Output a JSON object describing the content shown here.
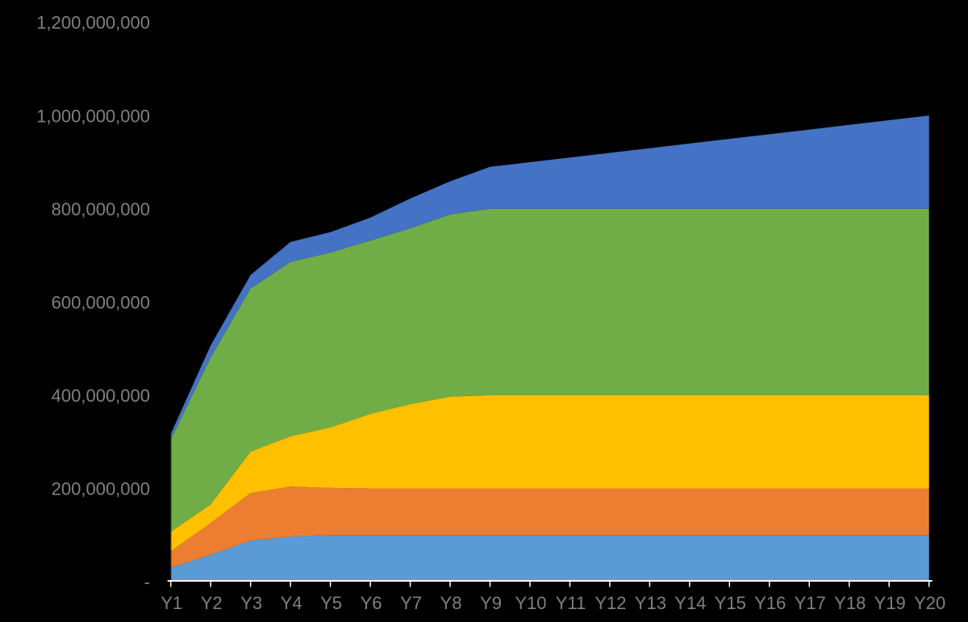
{
  "chart_data": {
    "type": "area",
    "stacked": true,
    "title": "",
    "xlabel": "",
    "ylabel": "",
    "grid": false,
    "legend": false,
    "background_color": "#000000",
    "label_color": "#808080",
    "axis_color": "#FFFFFF",
    "ylim": [
      0,
      1200000000
    ],
    "categories": [
      "Y1",
      "Y2",
      "Y3",
      "Y4",
      "Y5",
      "Y6",
      "Y7",
      "Y8",
      "Y9",
      "Y10",
      "Y11",
      "Y12",
      "Y13",
      "Y14",
      "Y15",
      "Y16",
      "Y17",
      "Y18",
      "Y19",
      "Y20"
    ],
    "y_ticks": [
      {
        "value": 0,
        "label": "-"
      },
      {
        "value": 200000000,
        "label": "200,000,000"
      },
      {
        "value": 400000000,
        "label": "400,000,000"
      },
      {
        "value": 600000000,
        "label": "600,000,000"
      },
      {
        "value": 800000000,
        "label": "800,000,000"
      },
      {
        "value": 1000000000,
        "label": "1,000,000,000"
      },
      {
        "value": 1200000000,
        "label": "1,200,000,000"
      }
    ],
    "series": [
      {
        "name": "light_blue",
        "color": "#5B9BD5",
        "values": [
          30000000,
          58000000,
          88000000,
          97000000,
          100000000,
          100000000,
          100000000,
          100000000,
          100000000,
          100000000,
          100000000,
          100000000,
          100000000,
          100000000,
          100000000,
          100000000,
          100000000,
          100000000,
          100000000,
          100000000
        ]
      },
      {
        "name": "orange",
        "color": "#ED7D31",
        "values": [
          35000000,
          68000000,
          102000000,
          107000000,
          101000000,
          100000000,
          100000000,
          100000000,
          100000000,
          100000000,
          100000000,
          100000000,
          100000000,
          100000000,
          100000000,
          100000000,
          100000000,
          100000000,
          100000000,
          100000000
        ]
      },
      {
        "name": "yellow",
        "color": "#FFC000",
        "values": [
          42000000,
          40000000,
          89000000,
          108000000,
          130000000,
          160000000,
          181000000,
          197000000,
          200000000,
          200000000,
          200000000,
          200000000,
          200000000,
          200000000,
          200000000,
          200000000,
          200000000,
          200000000,
          200000000,
          200000000
        ]
      },
      {
        "name": "green",
        "color": "#70AD47",
        "values": [
          198000000,
          315000000,
          350000000,
          374000000,
          375000000,
          372000000,
          377000000,
          391000000,
          400000000,
          400000000,
          400000000,
          400000000,
          400000000,
          400000000,
          400000000,
          400000000,
          400000000,
          400000000,
          400000000,
          400000000
        ]
      },
      {
        "name": "dark_blue",
        "color": "#4472C4",
        "values": [
          12000000,
          26000000,
          29000000,
          43000000,
          44000000,
          49000000,
          64000000,
          71000000,
          90000000,
          100000000,
          110000000,
          120000000,
          130000000,
          140000000,
          150000000,
          160000000,
          170000000,
          180000000,
          190000000,
          200000000
        ]
      }
    ]
  }
}
